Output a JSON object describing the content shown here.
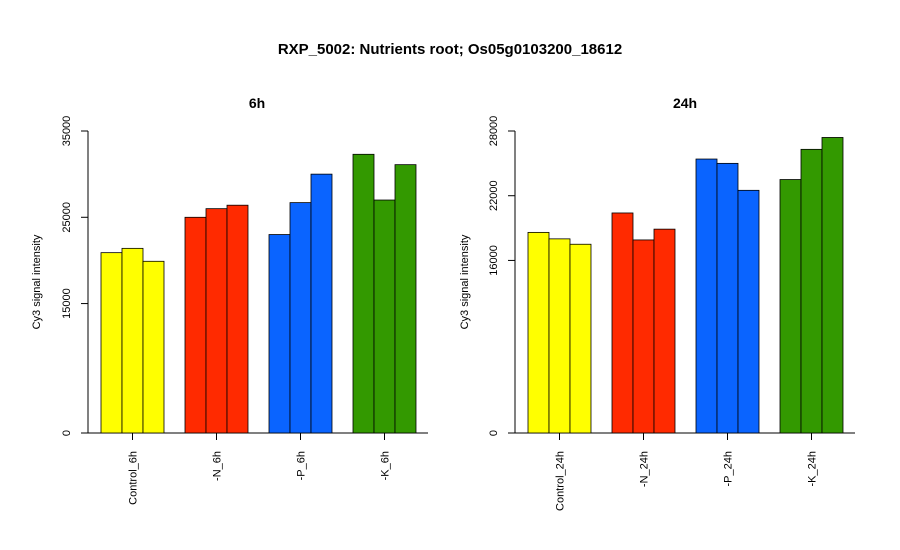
{
  "title": "RXP_5002: Nutrients root; Os05g0103200_18612",
  "colors": {
    "Control": "#ffff00",
    "N": "#ff2a00",
    "P": "#0a64ff",
    "K": "#339900"
  },
  "chart_data": [
    {
      "type": "bar",
      "title": "6h",
      "ylabel": "Cy3 signal intensity",
      "ylim": [
        0,
        35000
      ],
      "yticks": [
        "0",
        "15000",
        "25000",
        "35000"
      ],
      "ytick_values": [
        0,
        15000,
        25000,
        35000
      ],
      "grid": false,
      "groups": [
        {
          "label": "Control_6h",
          "color_key": "Control",
          "values": [
            20900,
            21400,
            19900
          ]
        },
        {
          "label": "-N_6h",
          "color_key": "N",
          "values": [
            25000,
            26000,
            26400
          ]
        },
        {
          "label": "-P_6h",
          "color_key": "P",
          "values": [
            23000,
            26700,
            30000
          ]
        },
        {
          "label": "-K_6h",
          "color_key": "K",
          "values": [
            32300,
            27000,
            31100
          ]
        }
      ]
    },
    {
      "type": "bar",
      "title": "24h",
      "ylabel": "Cy3 signal intensity",
      "ylim": [
        0,
        28000
      ],
      "yticks": [
        "0",
        "16000",
        "22000",
        "28000"
      ],
      "ytick_values": [
        0,
        16000,
        22000,
        28000
      ],
      "grid": false,
      "groups": [
        {
          "label": "Control_24h",
          "color_key": "Control",
          "values": [
            18600,
            18000,
            17500
          ]
        },
        {
          "label": "-N_24h",
          "color_key": "N",
          "values": [
            20400,
            17900,
            18900
          ]
        },
        {
          "label": "-P_24h",
          "color_key": "P",
          "values": [
            25400,
            25000,
            22500
          ]
        },
        {
          "label": "-K_24h",
          "color_key": "K",
          "values": [
            23500,
            26300,
            27400
          ]
        }
      ]
    }
  ]
}
